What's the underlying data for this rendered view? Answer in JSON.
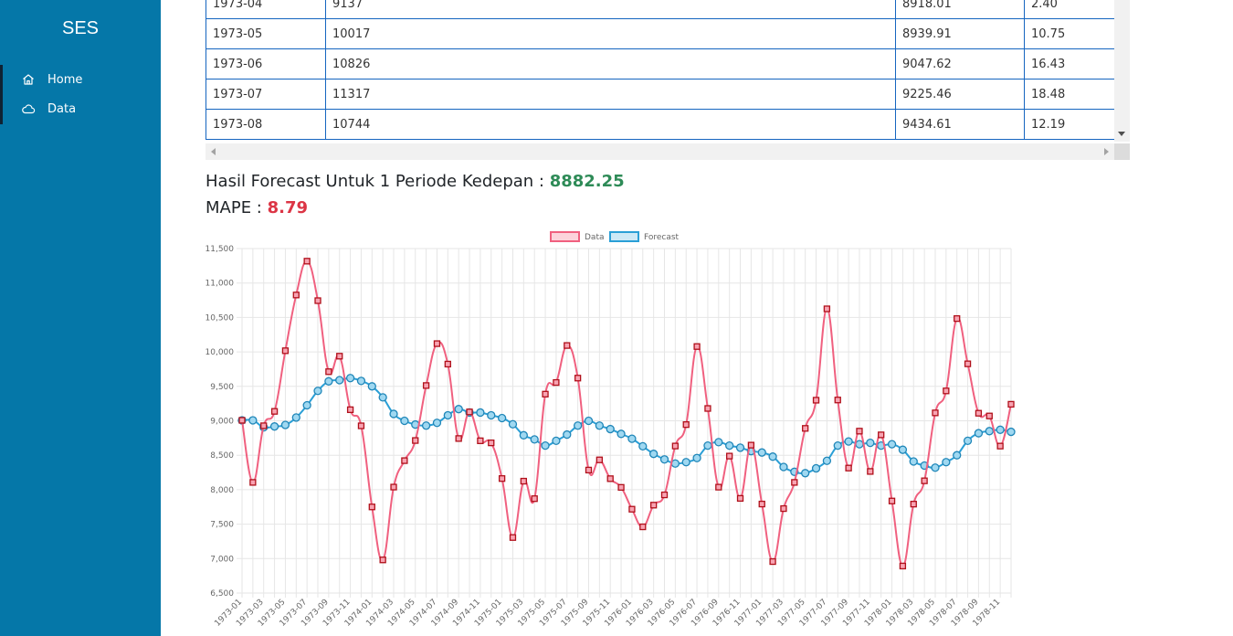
{
  "sidebar": {
    "brand": "SES",
    "items": [
      {
        "label": "Home",
        "icon": "home-icon"
      },
      {
        "label": "Data",
        "icon": "cloud-icon"
      }
    ]
  },
  "table": {
    "rows": [
      [
        "1973-04",
        "9137",
        "8918.01",
        "2.40"
      ],
      [
        "1973-05",
        "10017",
        "8939.91",
        "10.75"
      ],
      [
        "1973-06",
        "10826",
        "9047.62",
        "16.43"
      ],
      [
        "1973-07",
        "11317",
        "9225.46",
        "18.48"
      ],
      [
        "1973-08",
        "10744",
        "9434.61",
        "12.19"
      ]
    ]
  },
  "result": {
    "forecast_label": "Hasil Forecast Untuk 1 Periode Kedepan : ",
    "forecast_value": "8882.25",
    "mape_label": "MAPE : ",
    "mape_value": "8.79"
  },
  "colors": {
    "sidebar": "#0577a8",
    "data_line": "#f0607f",
    "data_point_border": "#b0101a",
    "forecast_line": "#2a9fd6",
    "forecast_value": "#2e8b57",
    "mape_value": "#dc3545"
  },
  "chart_data": {
    "type": "line",
    "ylim": [
      6500,
      11500
    ],
    "yticks": [
      6500,
      7000,
      7500,
      8000,
      8500,
      9000,
      9500,
      10000,
      10500,
      11000,
      11500
    ],
    "ytick_labels": [
      "6,500",
      "7,000",
      "7,500",
      "8,000",
      "8,500",
      "9,000",
      "9,500",
      "10,000",
      "10,500",
      "11,000",
      "11,500"
    ],
    "x": [
      "1973-01",
      "1973-02",
      "1973-03",
      "1973-04",
      "1973-05",
      "1973-06",
      "1973-07",
      "1973-08",
      "1973-09",
      "1973-10",
      "1973-11",
      "1973-12",
      "1974-01",
      "1974-02",
      "1974-03",
      "1974-04",
      "1974-05",
      "1974-06",
      "1974-07",
      "1974-08",
      "1974-09",
      "1974-10",
      "1974-11",
      "1974-12",
      "1975-01",
      "1975-02",
      "1975-03",
      "1975-04",
      "1975-05",
      "1975-06",
      "1975-07",
      "1975-08",
      "1975-09",
      "1975-10",
      "1975-11",
      "1975-12",
      "1976-01",
      "1976-02",
      "1976-03",
      "1976-04",
      "1976-05",
      "1976-06",
      "1976-07",
      "1976-08",
      "1976-09",
      "1976-10",
      "1976-11",
      "1976-12",
      "1977-01",
      "1977-02",
      "1977-03",
      "1977-04",
      "1977-05",
      "1977-06",
      "1977-07",
      "1977-08",
      "1977-09",
      "1977-10",
      "1977-11",
      "1977-12",
      "1978-01",
      "1978-02",
      "1978-03",
      "1978-04",
      "1978-05",
      "1978-06",
      "1978-07",
      "1978-08",
      "1978-09",
      "1978-10",
      "1978-11",
      "1978-12"
    ],
    "xtick_labels": [
      "1973-01",
      "1973-03",
      "1973-05",
      "1973-07",
      "1973-09",
      "1973-11",
      "1974-01",
      "1974-03",
      "1974-05",
      "1974-07",
      "1974-09",
      "1974-11",
      "1975-01",
      "1975-03",
      "1975-05",
      "1975-07",
      "1975-09",
      "1975-11",
      "1976-01",
      "1976-03",
      "1976-05",
      "1976-07",
      "1976-09",
      "1976-11",
      "1977-01",
      "1977-03",
      "1977-05",
      "1977-07",
      "1977-09",
      "1977-11",
      "1978-01",
      "1978-03",
      "1978-05",
      "1978-07",
      "1978-09",
      "1978-11"
    ],
    "legend_position": "top-center",
    "grid": true,
    "series": [
      {
        "name": "Data",
        "values": [
          9007,
          8106,
          8928,
          9137,
          10017,
          10826,
          11317,
          10744,
          9713,
          9938,
          9161,
          8927,
          7750,
          6981,
          8038,
          8422,
          8714,
          9512,
          10120,
          9823,
          8743,
          9129,
          8710,
          8680,
          8162,
          7306,
          8124,
          7870,
          9387,
          9556,
          10093,
          9620,
          8285,
          8433,
          8160,
          8034,
          7717,
          7461,
          7776,
          7925,
          8634,
          8945,
          10078,
          9179,
          8037,
          8488,
          7874,
          8647,
          7792,
          6957,
          7726,
          8106,
          8890,
          9299,
          10625,
          9302,
          8314,
          8850,
          8265,
          8796,
          7836,
          6892,
          7791,
          8129,
          9115,
          9434,
          10484,
          9827,
          9110,
          9070,
          8633,
          9240
        ]
      },
      {
        "name": "Forecast",
        "values": [
          9007,
          9007,
          8906,
          8918.01,
          8939.91,
          9047.62,
          9225.46,
          9434.61,
          9573,
          9590,
          9620,
          9579,
          9500,
          9340,
          9100,
          9000,
          8946,
          8930,
          8970,
          9080,
          9170,
          9120,
          9120,
          9080,
          9040,
          8950,
          8790,
          8730,
          8640,
          8710,
          8800,
          8930,
          9000,
          8930,
          8880,
          8810,
          8740,
          8630,
          8520,
          8440,
          8380,
          8400,
          8460,
          8640,
          8690,
          8640,
          8610,
          8560,
          8540,
          8480,
          8330,
          8260,
          8240,
          8310,
          8420,
          8640,
          8700,
          8660,
          8680,
          8640,
          8660,
          8580,
          8410,
          8350,
          8320,
          8400,
          8500,
          8710,
          8820,
          8850,
          8870,
          8840
        ]
      }
    ]
  }
}
